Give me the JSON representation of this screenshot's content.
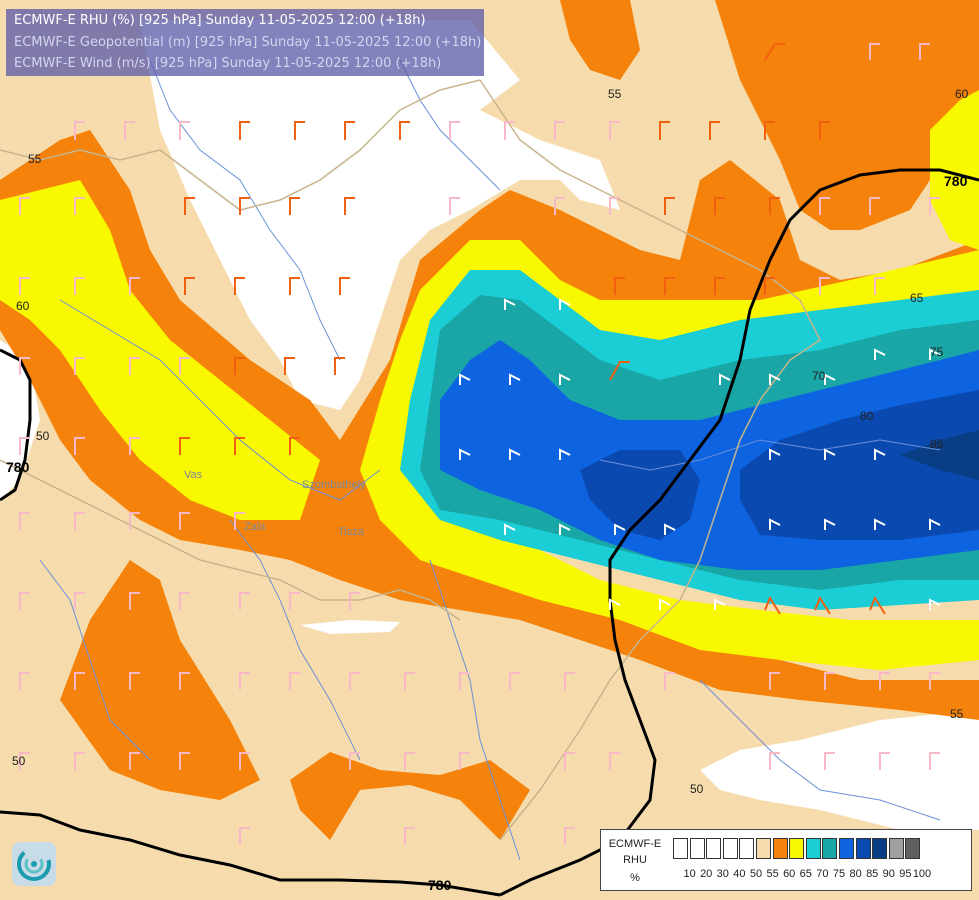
{
  "title_lines": [
    "ECMWF-E RHU (%) [925 hPa] Sunday 11-05-2025 12:00 (+18h)",
    "ECMWF-E Geopotential (m) [925 hPa] Sunday 11-05-2025 12:00 (+18h)",
    "ECMWF-E Wind (m/s) [925 hPa] Sunday 11-05-2025 12:00 (+18h)"
  ],
  "colors": {
    "title_first_line": "#ffffff",
    "title_other_lines": "#d4d4ee",
    "rhu_55_60": "#f6dcac",
    "rhu_60_65": "#f5820a",
    "rhu_65_70": "#f8f800",
    "rhu_70_75": "#1bcdd4",
    "rhu_75_80": "#1aa6a6",
    "rhu_80_85": "#0e64e0",
    "rhu_85_90": "#0a4ab0",
    "rhu_90_95": "#093e84",
    "geopotential_line": "#000000",
    "wind_barb_low": "#f8b8c8",
    "wind_barb_mid": "#f06010",
    "wind_barb_high": "#ffffff",
    "river": "#6a90d8",
    "border": "#c8b48c"
  },
  "contour_labels": {
    "rhu": [
      "55",
      "55",
      "60",
      "60",
      "65",
      "70",
      "75",
      "80",
      "85",
      "55",
      "50",
      "50",
      "50"
    ],
    "geopotential": [
      "780",
      "780",
      "780"
    ]
  },
  "place_labels": [
    "Vas",
    "Zala",
    "Szombathely",
    "Tisza"
  ],
  "legend": {
    "title_lines": [
      "ECMWF-E",
      "RHU",
      "%"
    ],
    "ticks": [
      "10",
      "20",
      "30",
      "40",
      "50",
      "55",
      "60",
      "65",
      "70",
      "75",
      "80",
      "85",
      "90",
      "95",
      "100"
    ],
    "swatch_colors": [
      "#ffffff",
      "#ffffff",
      "#ffffff",
      "#ffffff",
      "#ffffff",
      "#f6dcac",
      "#f5820a",
      "#f8f800",
      "#1bcdd4",
      "#1aa6a6",
      "#0e64e0",
      "#0a4ab0",
      "#093e84",
      "#a0a0a0",
      "#606060"
    ]
  },
  "logo_icon": "ecmwf-swirl-logo"
}
